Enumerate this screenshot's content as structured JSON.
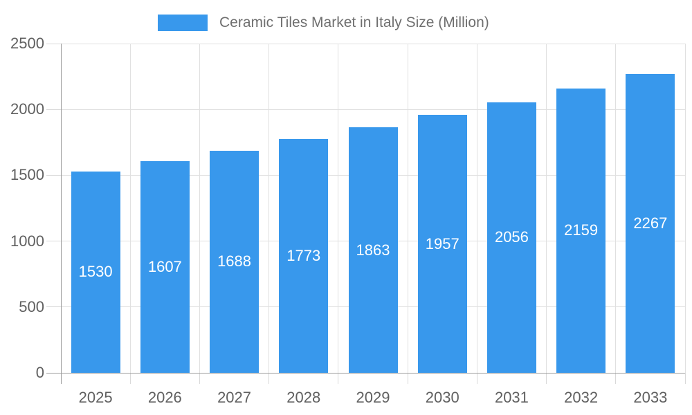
{
  "legend": {
    "label": "Ceramic Tiles Market in Italy Size (Million)"
  },
  "chart_data": {
    "type": "bar",
    "title": "Ceramic Tiles Market in Italy Size (Million)",
    "categories": [
      "2025",
      "2026",
      "2027",
      "2028",
      "2029",
      "2030",
      "2031",
      "2032",
      "2033"
    ],
    "values": [
      1530,
      1607,
      1688,
      1773,
      1863,
      1957,
      2056,
      2159,
      2267
    ],
    "xlabel": "",
    "ylabel": "",
    "ylim": [
      0,
      2500
    ],
    "yticks": [
      0,
      500,
      1000,
      1500,
      2000,
      2500
    ],
    "legend_position": "top",
    "grid": true,
    "value_labels_inside_bars": true,
    "colors": {
      "bar": "#3898ec",
      "value_label": "#ffffff",
      "axis_line": "#9b9b9b",
      "gridline": "#e0e0e0",
      "tick": "#d9d9d9",
      "axis_text": "#606060",
      "legend_text": "#6f6f6f",
      "background": "#ffffff"
    }
  }
}
